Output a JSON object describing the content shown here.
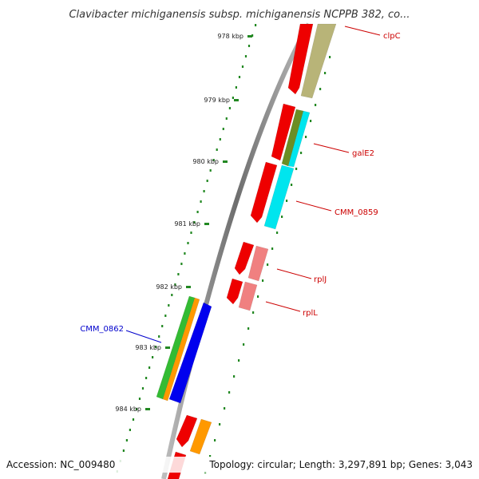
{
  "title": "Clavibacter michiganensis subsp. michiganensis NCPPB 382, co...",
  "footer": {
    "accession": "Accession: NC_009480",
    "topology": "Topology: circular; Length: 3,297,891 bp; Genes: 3,043"
  },
  "ticks": [
    "978 kbp",
    "979 kbp",
    "980 kbp",
    "981 kbp",
    "982 kbp",
    "983 kbp",
    "984 kbp"
  ],
  "gene_labels": [
    "clpC",
    "galE2",
    "CMM_0859",
    "rplJ",
    "rplL",
    "CMM_0862"
  ],
  "colors": {
    "backbone": "#888888",
    "red_gene": "#ee0000",
    "pink_gene": "#f08080",
    "olive_gene": "#b8b478",
    "cyan_gene": "#00e5ee",
    "green_gene": "#33bb33",
    "orange_gene": "#ff9900",
    "blue_gene": "#0000ee",
    "label_red": "#cc0000",
    "label_blue": "#0000cc",
    "tick_green": "#228822"
  }
}
